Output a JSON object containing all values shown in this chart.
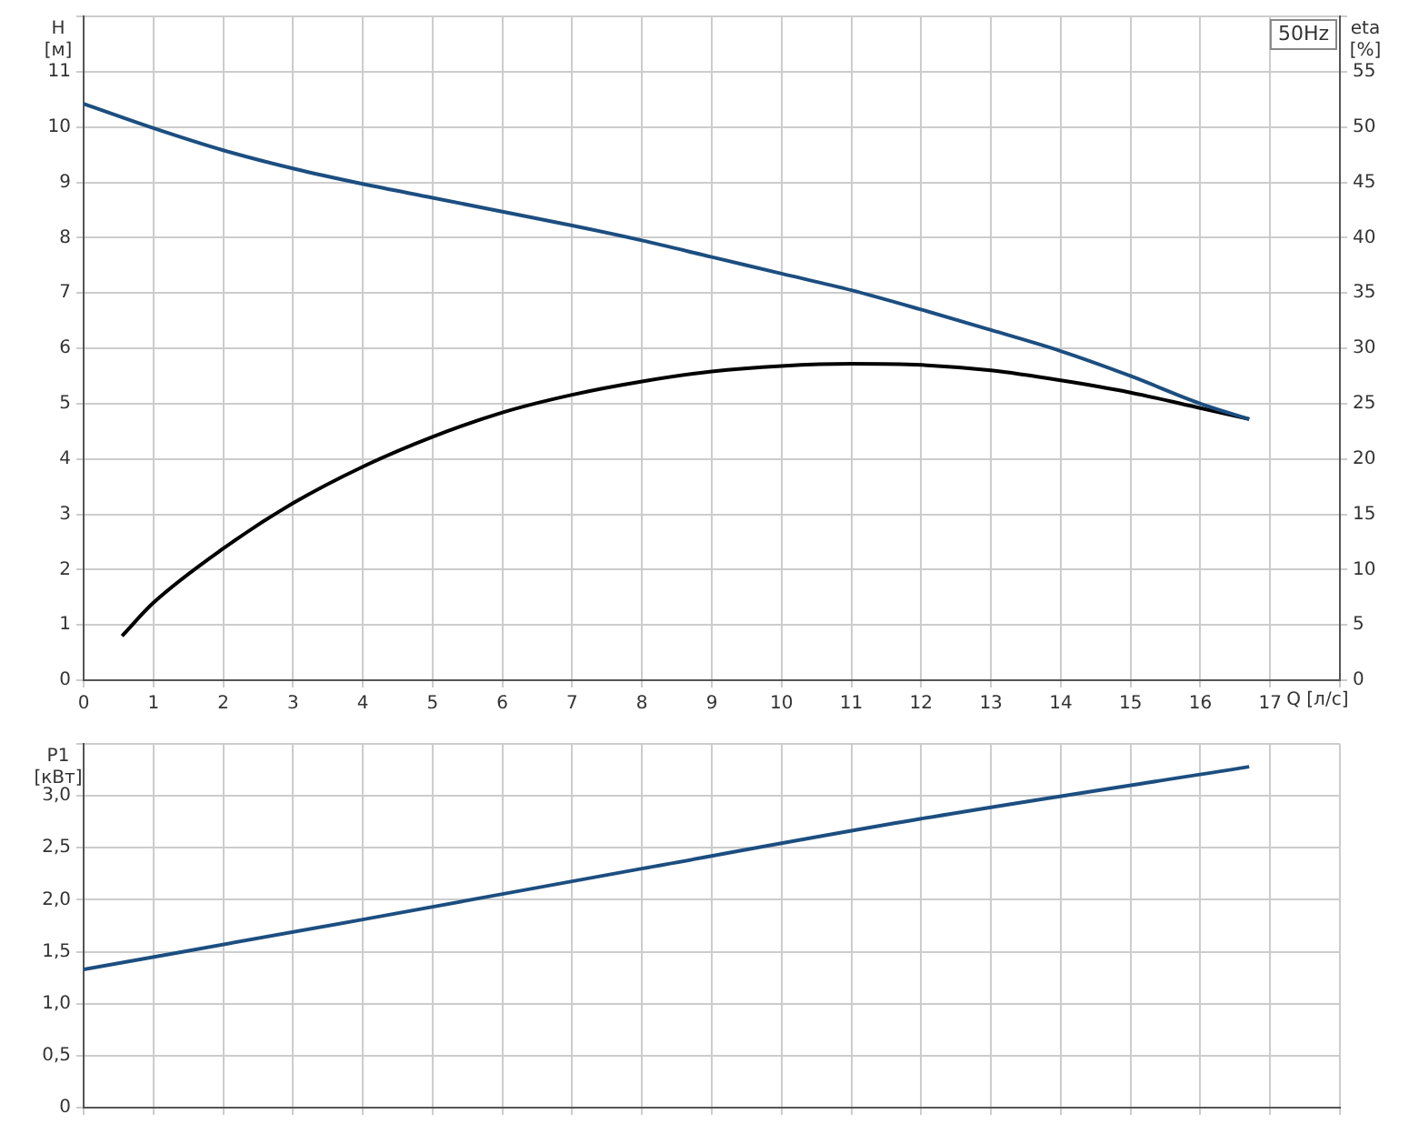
{
  "chart_data": [
    {
      "type": "line",
      "xlabel": "Q [л/с]",
      "ylabel": "H [м]",
      "y2label": "eta [%]",
      "annotations": [
        "50Hz"
      ],
      "xlim": [
        0,
        18
      ],
      "xticks": [
        0,
        1,
        2,
        3,
        4,
        5,
        6,
        7,
        8,
        9,
        10,
        11,
        12,
        13,
        14,
        15,
        16,
        17,
        {
          "value": 18,
          "label": null
        }
      ],
      "ylim": [
        0,
        12
      ],
      "yticks": [
        0,
        1,
        2,
        3,
        4,
        5,
        6,
        7,
        8,
        9,
        10,
        11,
        {
          "value": 12,
          "label": null
        }
      ],
      "y2lim": [
        0,
        60
      ],
      "y2ticks": [
        0,
        5,
        10,
        15,
        20,
        25,
        30,
        35,
        40,
        45,
        50,
        55,
        {
          "value": 60,
          "label": null
        }
      ],
      "grid": true,
      "legend": false,
      "marker": "none",
      "line_style": "solid",
      "series": [
        {
          "color": "#1c4e80",
          "x": [
            0,
            1,
            2,
            3,
            4,
            5,
            6,
            7,
            8,
            9,
            10,
            11,
            12,
            13,
            14,
            15,
            16,
            16.7
          ],
          "values": [
            10.42,
            9.98,
            9.58,
            9.25,
            8.97,
            8.72,
            8.47,
            8.22,
            7.95,
            7.65,
            7.35,
            7.05,
            6.7,
            6.33,
            5.95,
            5.5,
            5.0,
            4.72
          ]
        },
        {
          "color": "#000000",
          "axis": "y2",
          "x": [
            0.55,
            1,
            2,
            3,
            4,
            5,
            6,
            7,
            8,
            9,
            10,
            11,
            12,
            13,
            14,
            15,
            16,
            16.7
          ],
          "values": [
            4,
            7,
            11.9,
            16,
            19.3,
            22,
            24.2,
            25.8,
            27,
            27.9,
            28.4,
            28.6,
            28.5,
            28.0,
            27.1,
            26.0,
            24.6,
            23.6
          ]
        }
      ]
    },
    {
      "type": "line",
      "ylabel": "P1 [кВт]",
      "tick_labels": "y",
      "xlim": [
        0,
        18
      ],
      "xticks": [
        0,
        1,
        2,
        3,
        4,
        5,
        6,
        7,
        8,
        9,
        10,
        11,
        12,
        13,
        14,
        15,
        16,
        17,
        18
      ],
      "ylim": [
        0,
        3.5
      ],
      "yticks": [
        0,
        {
          "value": 0.5,
          "label": "0,5"
        },
        {
          "value": 1,
          "label": "1,0"
        },
        {
          "value": 1.5,
          "label": "1,5"
        },
        {
          "value": 2,
          "label": "2,0"
        },
        {
          "value": 2.5,
          "label": "2,5"
        },
        {
          "value": 3,
          "label": "3,0"
        },
        {
          "value": 3.5,
          "label": null
        }
      ],
      "grid": true,
      "legend": false,
      "marker": "none",
      "line_style": "solid",
      "series": [
        {
          "color": "#1c4e80",
          "x": [
            0,
            4,
            8,
            12,
            16.7
          ],
          "values": [
            1.33,
            1.81,
            2.3,
            2.78,
            3.28
          ]
        }
      ]
    }
  ]
}
